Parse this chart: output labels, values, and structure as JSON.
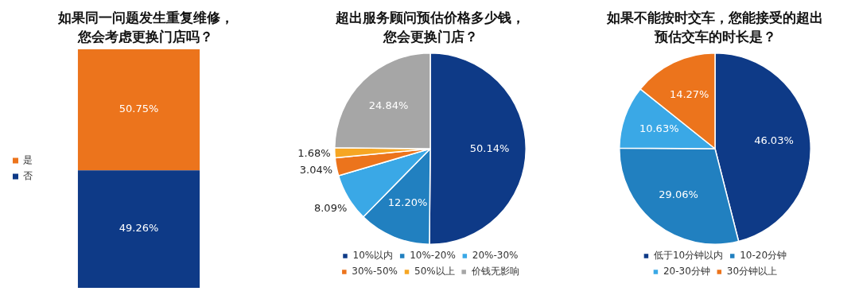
{
  "chart_data": [
    {
      "type": "bar",
      "title": "如果同一问题发生重复维修，您会考虑更换门店吗？",
      "categories": [
        null
      ],
      "stacked": true,
      "legend": "left",
      "series": [
        {
          "name": "否",
          "color": "#0e3a87",
          "values": [
            49.26
          ],
          "value_labels": [
            "49.26%"
          ]
        },
        {
          "name": "是",
          "color": "#ec741c",
          "values": [
            50.75
          ],
          "value_labels": [
            "50.75%"
          ]
        }
      ]
    },
    {
      "type": "pie",
      "title": "超出服务顾问预估价格多少钱，您会更换门店？",
      "categories": [
        "10%以内",
        "10%-20%",
        "20%-30%",
        "30%-50%",
        "50%以上",
        "价钱无影响"
      ],
      "values": [
        50.14,
        12.2,
        8.09,
        3.04,
        1.68,
        24.84
      ],
      "value_labels": [
        "50.14%",
        "12.20%",
        "8.09%",
        "3.04%",
        "1.68%",
        "24.84%"
      ],
      "colors": [
        "#0e3a87",
        "#2180c0",
        "#3aa8e6",
        "#ec741c",
        "#f6a623",
        "#a6a6a6"
      ],
      "legend": "bottom"
    },
    {
      "type": "pie",
      "title": "如果不能按时交车，您能接受的超出预估交车的时长是？",
      "categories": [
        "低于10分钟以内",
        "10-20分钟",
        "20-30分钟",
        "30分钟以上"
      ],
      "values": [
        46.03,
        29.06,
        10.63,
        14.27
      ],
      "value_labels": [
        "46.03%",
        "29.06%",
        "10.63%",
        "14.27%"
      ],
      "colors": [
        "#0e3a87",
        "#2180c0",
        "#3aa8e6",
        "#ec741c"
      ],
      "legend": "bottom"
    }
  ]
}
